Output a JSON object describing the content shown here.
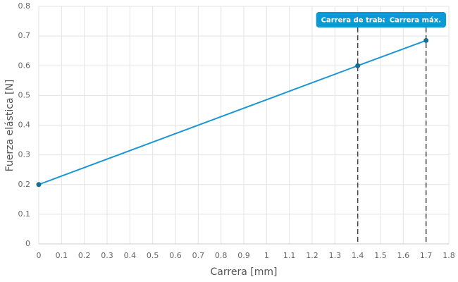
{
  "chart_data": {
    "type": "line",
    "x_label": "Carrera [mm]",
    "y_label": "Fuerza elástica [N]",
    "x": [
      0,
      1.4,
      1.7
    ],
    "series": [
      {
        "color": "#1a96d4",
        "marker_color": "#156f94",
        "values": [
          0.2,
          0.6,
          0.685
        ]
      }
    ],
    "xlim": [
      0,
      1.8
    ],
    "xticks": [
      0,
      0.1,
      0.2,
      0.3,
      0.4,
      0.5,
      0.6,
      0.7,
      0.8,
      0.9,
      1,
      1.1,
      1.2,
      1.3,
      1.4,
      1.5,
      1.6,
      1.7,
      1.8
    ],
    "ylim": [
      0,
      0.8
    ],
    "yticks": [
      0,
      0.1,
      0.2,
      0.3,
      0.4,
      0.5,
      0.6,
      0.7,
      0.8
    ],
    "grid": true,
    "annotations": [
      {
        "x": 1.4,
        "label": "Carrera de trabajo"
      },
      {
        "x": 1.7,
        "label": "Carrera máx."
      }
    ],
    "annotation_color": "#0a9ad6"
  }
}
